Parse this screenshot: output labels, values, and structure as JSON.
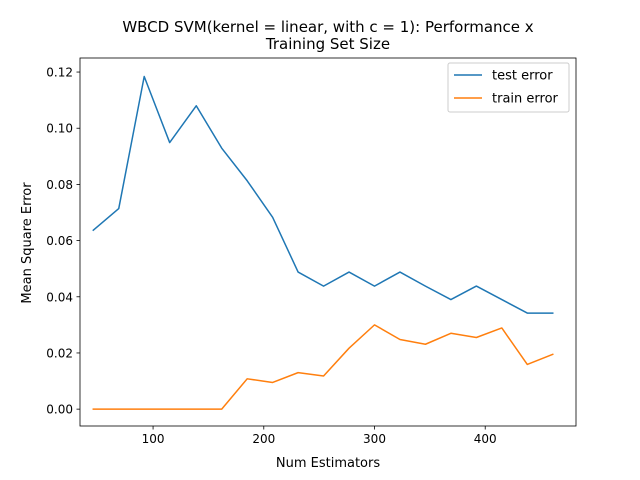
{
  "chart_data": {
    "type": "line",
    "title_lines": [
      "WBCD SVM(kernel = linear, with c = 1): Performance x",
      "Training Set Size"
    ],
    "xlabel": "Num Estimators",
    "ylabel": "Mean Square Error",
    "xlim": [
      34,
      482
    ],
    "ylim": [
      -0.006,
      0.125
    ],
    "x_ticks": [
      100,
      200,
      300,
      400
    ],
    "y_ticks": [
      0.0,
      0.02,
      0.04,
      0.06,
      0.08,
      0.1,
      0.12
    ],
    "y_tick_decimals": 2,
    "grid": false,
    "legend_position": "top-right",
    "x": [
      46,
      69,
      92,
      115,
      139,
      162,
      185,
      208,
      231,
      254,
      277,
      300,
      323,
      346,
      369,
      392,
      415,
      438,
      461
    ],
    "series": [
      {
        "name": "test error",
        "color": "#1f77b4",
        "values": [
          0.0637,
          0.0714,
          0.1184,
          0.0949,
          0.108,
          0.0929,
          0.0813,
          0.0683,
          0.0488,
          0.0438,
          0.0488,
          0.0438,
          0.0488,
          0.0438,
          0.039,
          0.0438,
          0.039,
          0.0342,
          0.0342
        ]
      },
      {
        "name": "train error",
        "color": "#ff7f0e",
        "values": [
          0.0,
          0.0,
          0.0,
          0.0,
          0.0,
          0.0,
          0.0108,
          0.0095,
          0.013,
          0.0118,
          0.0217,
          0.03,
          0.0248,
          0.0231,
          0.027,
          0.0255,
          0.0289,
          0.0159,
          0.0195
        ]
      }
    ]
  }
}
